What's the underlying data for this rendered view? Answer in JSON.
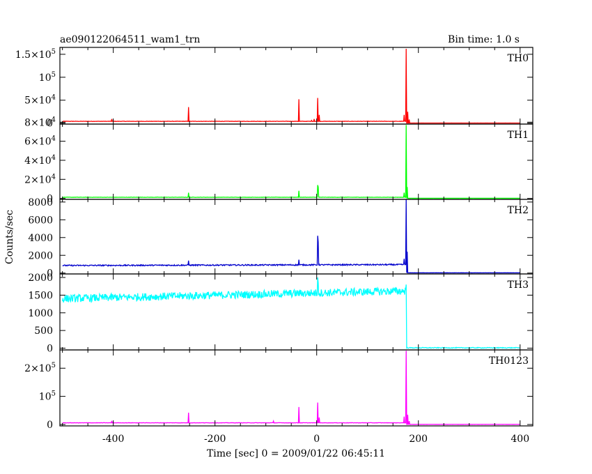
{
  "header": {
    "title": "ae090122064511_wam1_trn",
    "bin_time": "Bin time: 1.0 s"
  },
  "chart_data": {
    "type": "line",
    "xlabel": "Time [sec] 0 = 2009/01/22 06:45:11",
    "ylabel": "Counts/sec",
    "xlim": [
      -505,
      425
    ],
    "x_ticks": [
      "-400",
      "-200",
      "0",
      "200",
      "400"
    ],
    "panels": [
      {
        "name": "TH0",
        "color": "#ff0000",
        "ylim": [
          -2000,
          165000
        ],
        "y_ticks": [
          {
            "value": 150000,
            "label": "1.5×10",
            "exp": "5"
          },
          {
            "value": 100000,
            "label": "10",
            "exp": "5"
          },
          {
            "value": 50000,
            "label": "5×10",
            "exp": "4"
          },
          {
            "value": 0,
            "label": "0",
            "exp": ""
          }
        ],
        "baseline_pre": 4000,
        "baseline_post": 300,
        "noise": 400,
        "drift": 0,
        "spikes": [
          [
            -403,
            9000
          ],
          [
            -252,
            35000
          ],
          [
            -35,
            52000
          ],
          [
            -10,
            6000
          ],
          [
            -5,
            9000
          ],
          [
            2,
            55000
          ],
          [
            5,
            18000
          ],
          [
            172,
            18000
          ],
          [
            176,
            162000
          ],
          [
            179,
            25000
          ],
          [
            182,
            8000
          ]
        ]
      },
      {
        "name": "TH1",
        "color": "#00ff00",
        "ylim": [
          -1000,
          78000
        ],
        "y_ticks": [
          {
            "value": 80000,
            "label": "8×10",
            "exp": "4"
          },
          {
            "value": 60000,
            "label": "6×10",
            "exp": "4"
          },
          {
            "value": 40000,
            "label": "4×10",
            "exp": "4"
          },
          {
            "value": 20000,
            "label": "2×10",
            "exp": "4"
          },
          {
            "value": 0,
            "label": "0",
            "exp": ""
          }
        ],
        "baseline_pre": 1200,
        "baseline_post": 150,
        "noise": 150,
        "drift": 0,
        "spikes": [
          [
            -252,
            6000
          ],
          [
            -35,
            8000
          ],
          [
            2,
            14000
          ],
          [
            3,
            12000
          ],
          [
            172,
            6000
          ],
          [
            176,
            77000
          ],
          [
            178,
            12000
          ]
        ]
      },
      {
        "name": "TH2",
        "color": "#0000cc",
        "ylim": [
          -100,
          8300
        ],
        "y_ticks": [
          {
            "value": 8000,
            "label": "8000",
            "exp": ""
          },
          {
            "value": 6000,
            "label": "6000",
            "exp": ""
          },
          {
            "value": 4000,
            "label": "4000",
            "exp": ""
          },
          {
            "value": 2000,
            "label": "2000",
            "exp": ""
          },
          {
            "value": 0,
            "label": "0",
            "exp": ""
          }
        ],
        "baseline_pre": 850,
        "baseline_post": 30,
        "noise": 70,
        "drift": 100,
        "spikes": [
          [
            -252,
            1400
          ],
          [
            -35,
            1500
          ],
          [
            2,
            4200
          ],
          [
            3,
            3500
          ],
          [
            172,
            1600
          ],
          [
            176,
            8300
          ],
          [
            178,
            2400
          ]
        ]
      },
      {
        "name": "TH3",
        "color": "#00ffff",
        "ylim": [
          -50,
          2100
        ],
        "y_ticks": [
          {
            "value": 2000,
            "label": "2000",
            "exp": ""
          },
          {
            "value": 1500,
            "label": "1500",
            "exp": ""
          },
          {
            "value": 1000,
            "label": "1000",
            "exp": ""
          },
          {
            "value": 500,
            "label": "500",
            "exp": ""
          },
          {
            "value": 0,
            "label": "0",
            "exp": ""
          }
        ],
        "baseline_pre": 1400,
        "baseline_post": 10,
        "noise": 110,
        "drift": 220,
        "spikes": [
          [
            2,
            2000
          ],
          [
            3,
            1850
          ],
          [
            176,
            1800
          ]
        ]
      },
      {
        "name": "TH0123",
        "color": "#ff00ff",
        "ylim": [
          -5000,
          265000
        ],
        "y_ticks": [
          {
            "value": 200000,
            "label": "2×10",
            "exp": "5"
          },
          {
            "value": 100000,
            "label": "10",
            "exp": "5"
          },
          {
            "value": 0,
            "label": "0",
            "exp": ""
          }
        ],
        "baseline_pre": 6000,
        "baseline_post": 500,
        "noise": 600,
        "drift": 0,
        "spikes": [
          [
            -403,
            13000
          ],
          [
            -252,
            42000
          ],
          [
            -85,
            12000
          ],
          [
            -35,
            62000
          ],
          [
            2,
            78000
          ],
          [
            5,
            25000
          ],
          [
            172,
            28000
          ],
          [
            176,
            262000
          ],
          [
            179,
            35000
          ],
          [
            182,
            12000
          ]
        ]
      }
    ]
  }
}
